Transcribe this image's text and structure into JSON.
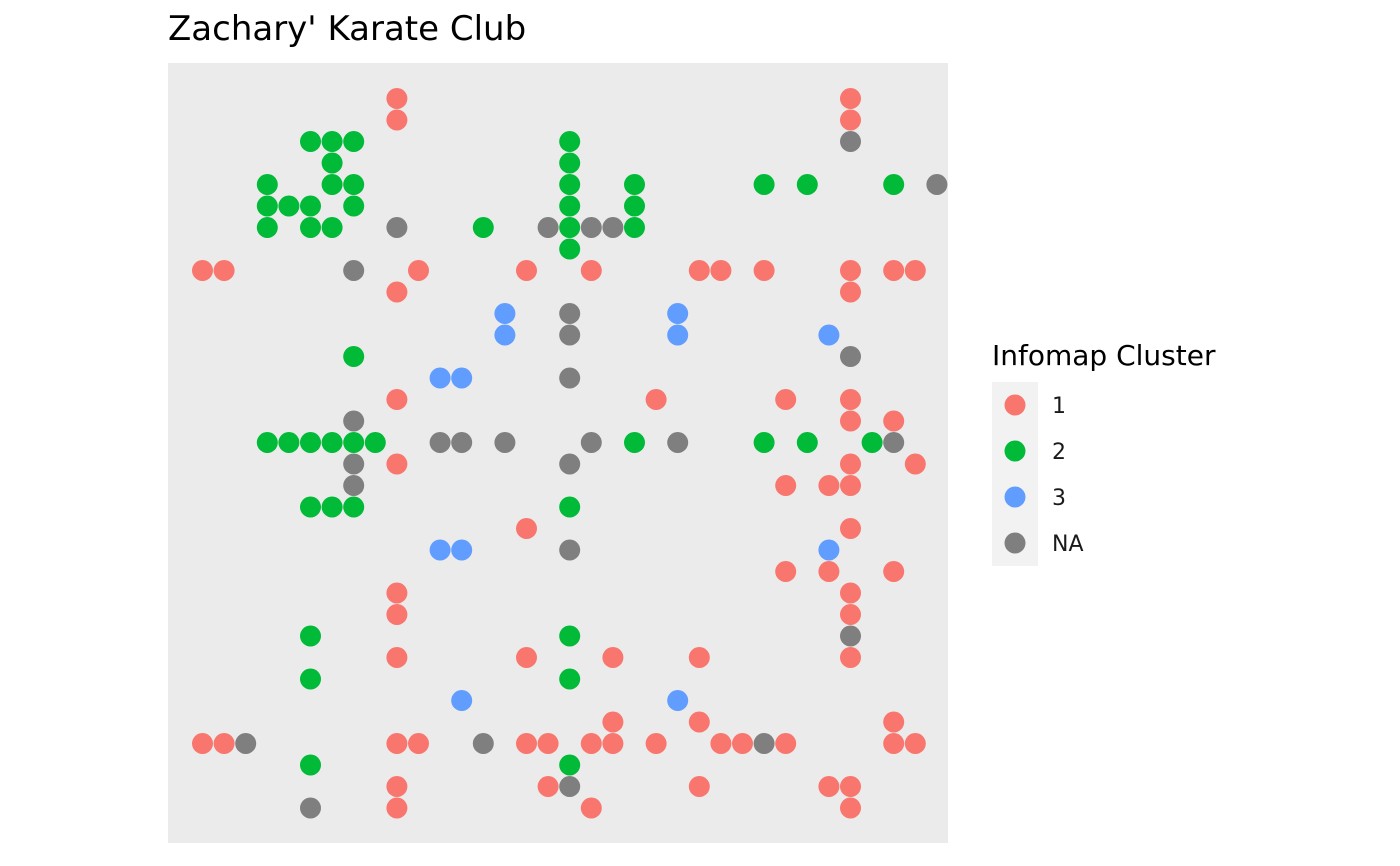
{
  "chart_data": {
    "type": "heatmap",
    "title": "Zachary' Karate Club",
    "xlabel": "",
    "ylabel": "",
    "grid": false,
    "axis_ticks": "hidden",
    "xlim": [
      1,
      34
    ],
    "ylim": [
      1,
      34
    ],
    "legend": {
      "title": "Infomap Cluster",
      "placement": "right",
      "entries": [
        {
          "key": "1",
          "label": "1",
          "color": "#F8766D"
        },
        {
          "key": "2",
          "label": "2",
          "color": "#00BA38"
        },
        {
          "key": "3",
          "label": "3",
          "color": "#619CFF"
        },
        {
          "key": "NA",
          "label": "NA",
          "color": "#7F7F7F"
        }
      ]
    },
    "panel_background": "#EBEBEB",
    "cells": [
      {
        "x": 10,
        "y": 1,
        "cluster": "1"
      },
      {
        "x": 31,
        "y": 1,
        "cluster": "1"
      },
      {
        "x": 10,
        "y": 2,
        "cluster": "1"
      },
      {
        "x": 31,
        "y": 2,
        "cluster": "1"
      },
      {
        "x": 6,
        "y": 3,
        "cluster": "2"
      },
      {
        "x": 7,
        "y": 3,
        "cluster": "2"
      },
      {
        "x": 8,
        "y": 3,
        "cluster": "2"
      },
      {
        "x": 18,
        "y": 3,
        "cluster": "2"
      },
      {
        "x": 31,
        "y": 3,
        "cluster": "NA"
      },
      {
        "x": 7,
        "y": 4,
        "cluster": "2"
      },
      {
        "x": 18,
        "y": 4,
        "cluster": "2"
      },
      {
        "x": 4,
        "y": 5,
        "cluster": "2"
      },
      {
        "x": 7,
        "y": 5,
        "cluster": "2"
      },
      {
        "x": 8,
        "y": 5,
        "cluster": "2"
      },
      {
        "x": 18,
        "y": 5,
        "cluster": "2"
      },
      {
        "x": 21,
        "y": 5,
        "cluster": "2"
      },
      {
        "x": 27,
        "y": 5,
        "cluster": "2"
      },
      {
        "x": 29,
        "y": 5,
        "cluster": "2"
      },
      {
        "x": 33,
        "y": 5,
        "cluster": "2"
      },
      {
        "x": 35,
        "y": 5,
        "cluster": "NA"
      },
      {
        "x": 4,
        "y": 6,
        "cluster": "2"
      },
      {
        "x": 5,
        "y": 6,
        "cluster": "2"
      },
      {
        "x": 6,
        "y": 6,
        "cluster": "2"
      },
      {
        "x": 8,
        "y": 6,
        "cluster": "2"
      },
      {
        "x": 18,
        "y": 6,
        "cluster": "2"
      },
      {
        "x": 21,
        "y": 6,
        "cluster": "2"
      },
      {
        "x": 4,
        "y": 7,
        "cluster": "2"
      },
      {
        "x": 6,
        "y": 7,
        "cluster": "2"
      },
      {
        "x": 7,
        "y": 7,
        "cluster": "2"
      },
      {
        "x": 10,
        "y": 7,
        "cluster": "NA"
      },
      {
        "x": 14,
        "y": 7,
        "cluster": "2"
      },
      {
        "x": 17,
        "y": 7,
        "cluster": "NA"
      },
      {
        "x": 18,
        "y": 7,
        "cluster": "2"
      },
      {
        "x": 19,
        "y": 7,
        "cluster": "NA"
      },
      {
        "x": 20,
        "y": 7,
        "cluster": "NA"
      },
      {
        "x": 21,
        "y": 7,
        "cluster": "2"
      },
      {
        "x": 18,
        "y": 8,
        "cluster": "2"
      },
      {
        "x": 1,
        "y": 9,
        "cluster": "1"
      },
      {
        "x": 2,
        "y": 9,
        "cluster": "1"
      },
      {
        "x": 8,
        "y": 9,
        "cluster": "NA"
      },
      {
        "x": 11,
        "y": 9,
        "cluster": "1"
      },
      {
        "x": 16,
        "y": 9,
        "cluster": "1"
      },
      {
        "x": 19,
        "y": 9,
        "cluster": "1"
      },
      {
        "x": 24,
        "y": 9,
        "cluster": "1"
      },
      {
        "x": 25,
        "y": 9,
        "cluster": "1"
      },
      {
        "x": 27,
        "y": 9,
        "cluster": "1"
      },
      {
        "x": 31,
        "y": 9,
        "cluster": "1"
      },
      {
        "x": 33,
        "y": 9,
        "cluster": "1"
      },
      {
        "x": 34,
        "y": 9,
        "cluster": "1"
      },
      {
        "x": 10,
        "y": 10,
        "cluster": "1"
      },
      {
        "x": 31,
        "y": 10,
        "cluster": "1"
      },
      {
        "x": 15,
        "y": 11,
        "cluster": "3"
      },
      {
        "x": 18,
        "y": 11,
        "cluster": "NA"
      },
      {
        "x": 23,
        "y": 11,
        "cluster": "3"
      },
      {
        "x": 15,
        "y": 12,
        "cluster": "3"
      },
      {
        "x": 18,
        "y": 12,
        "cluster": "NA"
      },
      {
        "x": 23,
        "y": 12,
        "cluster": "3"
      },
      {
        "x": 30,
        "y": 12,
        "cluster": "3"
      },
      {
        "x": 8,
        "y": 13,
        "cluster": "2"
      },
      {
        "x": 31,
        "y": 13,
        "cluster": "NA"
      },
      {
        "x": 12,
        "y": 14,
        "cluster": "3"
      },
      {
        "x": 13,
        "y": 14,
        "cluster": "3"
      },
      {
        "x": 18,
        "y": 14,
        "cluster": "NA"
      },
      {
        "x": 10,
        "y": 15,
        "cluster": "1"
      },
      {
        "x": 22,
        "y": 15,
        "cluster": "1"
      },
      {
        "x": 28,
        "y": 15,
        "cluster": "1"
      },
      {
        "x": 31,
        "y": 15,
        "cluster": "1"
      },
      {
        "x": 8,
        "y": 16,
        "cluster": "NA"
      },
      {
        "x": 31,
        "y": 16,
        "cluster": "1"
      },
      {
        "x": 33,
        "y": 16,
        "cluster": "1"
      },
      {
        "x": 4,
        "y": 17,
        "cluster": "2"
      },
      {
        "x": 5,
        "y": 17,
        "cluster": "2"
      },
      {
        "x": 6,
        "y": 17,
        "cluster": "2"
      },
      {
        "x": 7,
        "y": 17,
        "cluster": "2"
      },
      {
        "x": 8,
        "y": 17,
        "cluster": "2"
      },
      {
        "x": 9,
        "y": 17,
        "cluster": "2"
      },
      {
        "x": 12,
        "y": 17,
        "cluster": "NA"
      },
      {
        "x": 13,
        "y": 17,
        "cluster": "NA"
      },
      {
        "x": 15,
        "y": 17,
        "cluster": "NA"
      },
      {
        "x": 19,
        "y": 17,
        "cluster": "NA"
      },
      {
        "x": 21,
        "y": 17,
        "cluster": "2"
      },
      {
        "x": 23,
        "y": 17,
        "cluster": "NA"
      },
      {
        "x": 27,
        "y": 17,
        "cluster": "2"
      },
      {
        "x": 29,
        "y": 17,
        "cluster": "2"
      },
      {
        "x": 32,
        "y": 17,
        "cluster": "2"
      },
      {
        "x": 33,
        "y": 17,
        "cluster": "NA"
      },
      {
        "x": 8,
        "y": 18,
        "cluster": "NA"
      },
      {
        "x": 10,
        "y": 18,
        "cluster": "1"
      },
      {
        "x": 18,
        "y": 18,
        "cluster": "NA"
      },
      {
        "x": 31,
        "y": 18,
        "cluster": "1"
      },
      {
        "x": 34,
        "y": 18,
        "cluster": "1"
      },
      {
        "x": 8,
        "y": 19,
        "cluster": "NA"
      },
      {
        "x": 28,
        "y": 19,
        "cluster": "1"
      },
      {
        "x": 30,
        "y": 19,
        "cluster": "1"
      },
      {
        "x": 31,
        "y": 19,
        "cluster": "1"
      },
      {
        "x": 6,
        "y": 20,
        "cluster": "2"
      },
      {
        "x": 7,
        "y": 20,
        "cluster": "2"
      },
      {
        "x": 8,
        "y": 20,
        "cluster": "2"
      },
      {
        "x": 18,
        "y": 20,
        "cluster": "2"
      },
      {
        "x": 16,
        "y": 21,
        "cluster": "1"
      },
      {
        "x": 31,
        "y": 21,
        "cluster": "1"
      },
      {
        "x": 12,
        "y": 22,
        "cluster": "3"
      },
      {
        "x": 13,
        "y": 22,
        "cluster": "3"
      },
      {
        "x": 18,
        "y": 22,
        "cluster": "NA"
      },
      {
        "x": 30,
        "y": 22,
        "cluster": "3"
      },
      {
        "x": 28,
        "y": 23,
        "cluster": "1"
      },
      {
        "x": 30,
        "y": 23,
        "cluster": "1"
      },
      {
        "x": 33,
        "y": 23,
        "cluster": "1"
      },
      {
        "x": 10,
        "y": 24,
        "cluster": "1"
      },
      {
        "x": 31,
        "y": 24,
        "cluster": "1"
      },
      {
        "x": 10,
        "y": 25,
        "cluster": "1"
      },
      {
        "x": 31,
        "y": 25,
        "cluster": "1"
      },
      {
        "x": 6,
        "y": 26,
        "cluster": "2"
      },
      {
        "x": 18,
        "y": 26,
        "cluster": "2"
      },
      {
        "x": 31,
        "y": 26,
        "cluster": "NA"
      },
      {
        "x": 10,
        "y": 27,
        "cluster": "1"
      },
      {
        "x": 16,
        "y": 27,
        "cluster": "1"
      },
      {
        "x": 20,
        "y": 27,
        "cluster": "1"
      },
      {
        "x": 24,
        "y": 27,
        "cluster": "1"
      },
      {
        "x": 31,
        "y": 27,
        "cluster": "1"
      },
      {
        "x": 6,
        "y": 28,
        "cluster": "2"
      },
      {
        "x": 18,
        "y": 28,
        "cluster": "2"
      },
      {
        "x": 13,
        "y": 29,
        "cluster": "3"
      },
      {
        "x": 23,
        "y": 29,
        "cluster": "3"
      },
      {
        "x": 20,
        "y": 30,
        "cluster": "1"
      },
      {
        "x": 24,
        "y": 30,
        "cluster": "1"
      },
      {
        "x": 33,
        "y": 30,
        "cluster": "1"
      },
      {
        "x": 1,
        "y": 31,
        "cluster": "1"
      },
      {
        "x": 2,
        "y": 31,
        "cluster": "1"
      },
      {
        "x": 3,
        "y": 31,
        "cluster": "NA"
      },
      {
        "x": 10,
        "y": 31,
        "cluster": "1"
      },
      {
        "x": 11,
        "y": 31,
        "cluster": "1"
      },
      {
        "x": 14,
        "y": 31,
        "cluster": "NA"
      },
      {
        "x": 16,
        "y": 31,
        "cluster": "1"
      },
      {
        "x": 17,
        "y": 31,
        "cluster": "1"
      },
      {
        "x": 19,
        "y": 31,
        "cluster": "1"
      },
      {
        "x": 20,
        "y": 31,
        "cluster": "1"
      },
      {
        "x": 22,
        "y": 31,
        "cluster": "1"
      },
      {
        "x": 25,
        "y": 31,
        "cluster": "1"
      },
      {
        "x": 26,
        "y": 31,
        "cluster": "1"
      },
      {
        "x": 27,
        "y": 31,
        "cluster": "NA"
      },
      {
        "x": 28,
        "y": 31,
        "cluster": "1"
      },
      {
        "x": 33,
        "y": 31,
        "cluster": "1"
      },
      {
        "x": 34,
        "y": 31,
        "cluster": "1"
      },
      {
        "x": 6,
        "y": 32,
        "cluster": "2"
      },
      {
        "x": 18,
        "y": 32,
        "cluster": "2"
      },
      {
        "x": 10,
        "y": 33,
        "cluster": "1"
      },
      {
        "x": 17,
        "y": 33,
        "cluster": "1"
      },
      {
        "x": 18,
        "y": 33,
        "cluster": "NA"
      },
      {
        "x": 24,
        "y": 33,
        "cluster": "1"
      },
      {
        "x": 30,
        "y": 33,
        "cluster": "1"
      },
      {
        "x": 31,
        "y": 33,
        "cluster": "1"
      },
      {
        "x": 6,
        "y": 34,
        "cluster": "NA"
      },
      {
        "x": 10,
        "y": 34,
        "cluster": "1"
      },
      {
        "x": 19,
        "y": 34,
        "cluster": "1"
      },
      {
        "x": 31,
        "y": 34,
        "cluster": "1"
      }
    ]
  }
}
